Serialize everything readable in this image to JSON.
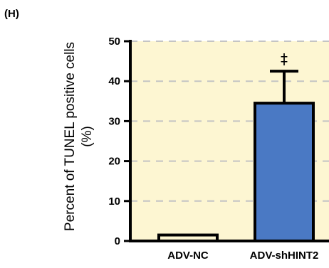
{
  "panel_label": "(H)",
  "colors": {
    "plot_background": "#fdf6d2",
    "gridline": "#c4c4c4",
    "bar_nc": "#fdf6d2",
    "bar_sh": "#4a79c4",
    "axis": "#000000"
  },
  "chart_data": {
    "type": "bar",
    "categories": [
      "ADV-NC",
      "ADV-shHINT2"
    ],
    "values": [
      1.5,
      34.5
    ],
    "error_upper": [
      null,
      42.5
    ],
    "ylabel_line1": "Percent of TUNEL positive cells",
    "ylabel_line2": "(%)",
    "ylim": [
      0,
      50
    ],
    "yticks": [
      "0",
      "10",
      "20",
      "30",
      "40",
      "50"
    ],
    "grid": true,
    "grid_style": "dashed",
    "annotations": [
      {
        "category": "ADV-shHINT2",
        "text": "‡"
      }
    ]
  }
}
